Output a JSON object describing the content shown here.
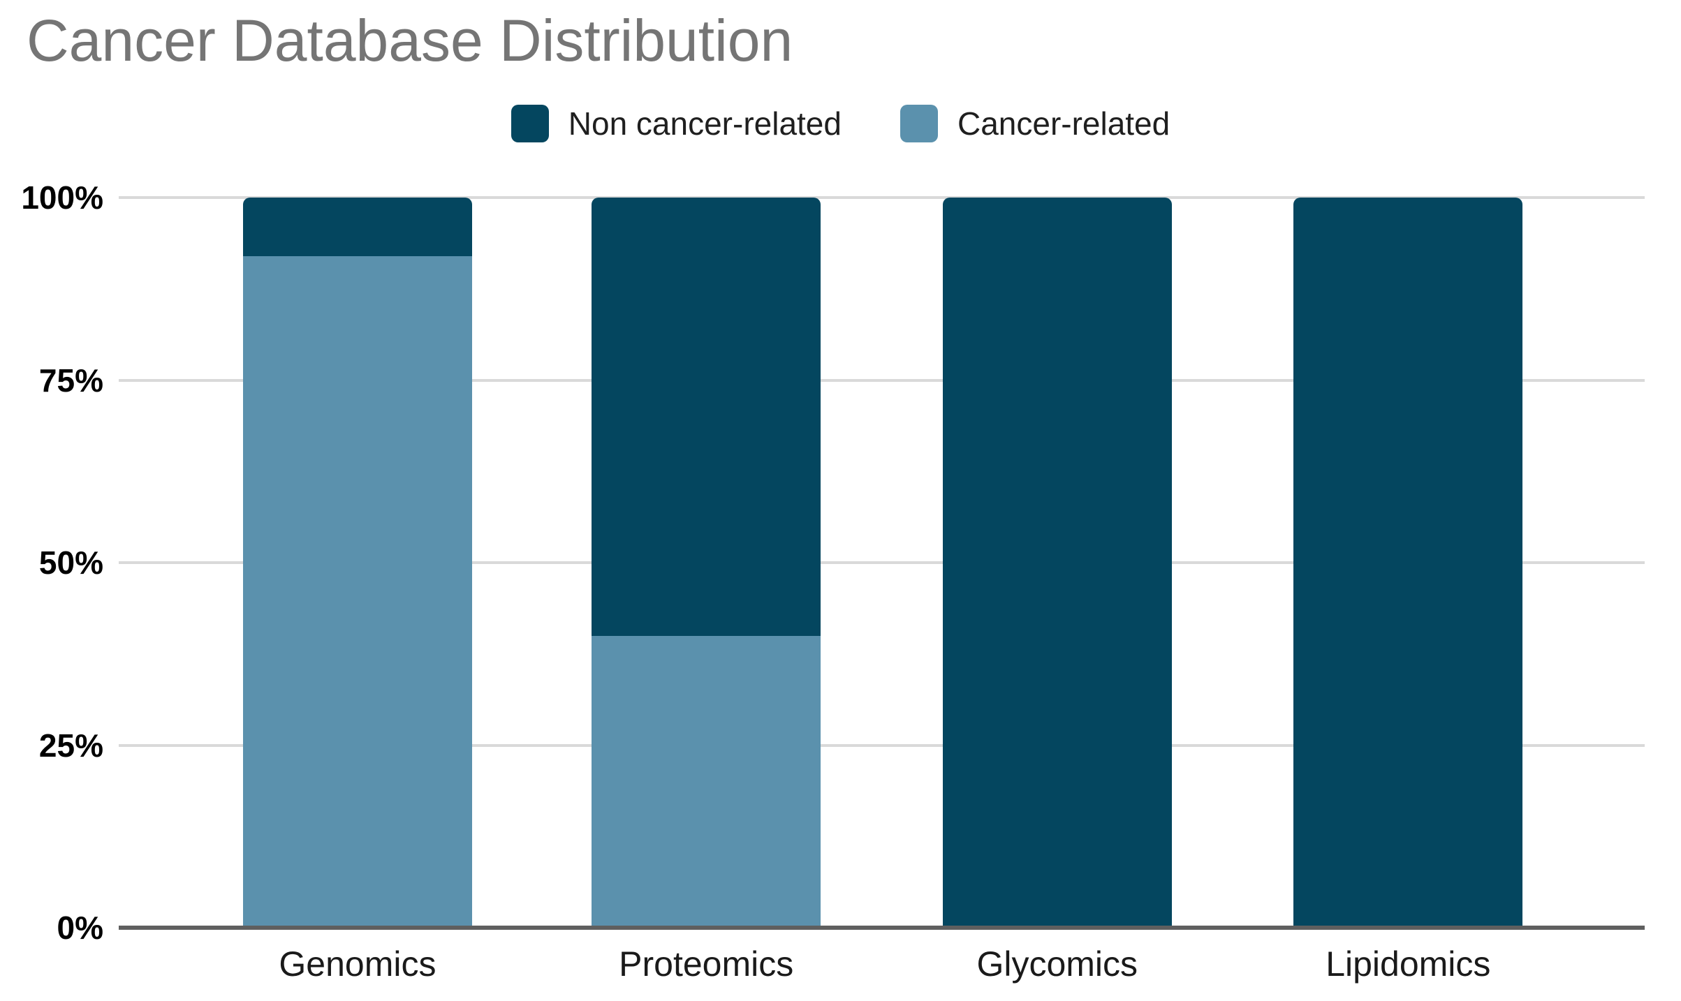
{
  "chart_data": {
    "type": "bar",
    "subtype": "stacked-100-percent-column",
    "title": "Cancer Database Distribution",
    "categories": [
      "Genomics",
      "Proteomics",
      "Glycomics",
      "Lipidomics"
    ],
    "series": [
      {
        "name": "Non cancer-related",
        "color": "#04465f",
        "values": [
          8,
          60,
          100,
          100
        ]
      },
      {
        "name": "Cancer-related",
        "color": "#5b91ad",
        "values": [
          92,
          40,
          0,
          0
        ]
      }
    ],
    "stack_order_bottom_to_top": [
      "Cancer-related",
      "Non cancer-related"
    ],
    "value_unit": "%",
    "xlabel": "",
    "ylabel": "",
    "y_axis": {
      "min": 0,
      "max": 100,
      "ticks": [
        {
          "value": 100,
          "label": "100%"
        },
        {
          "value": 75,
          "label": "75%"
        },
        {
          "value": 50,
          "label": "50%"
        },
        {
          "value": 25,
          "label": "25%"
        },
        {
          "value": 0,
          "label": "0%"
        }
      ]
    },
    "legend_position": "top",
    "grid": true,
    "colors": {
      "title_text": "#757575",
      "gridline": "#d9d9d9",
      "axis_line": "#5f5f5f",
      "label_text": "#000000"
    }
  }
}
